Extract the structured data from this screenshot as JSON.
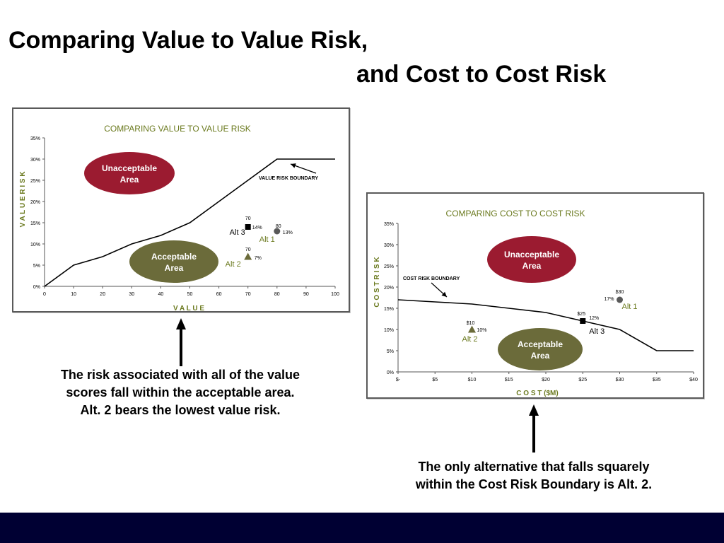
{
  "slide": {
    "title_line1": "Comparing Value to Value Risk,",
    "title_line2": "and Cost to Cost Risk",
    "caption_value": [
      "The risk associated with all of the value",
      "scores fall within the acceptable area.",
      "Alt. 2 bears the lowest value risk."
    ],
    "caption_cost": [
      "The only alternative that falls squarely",
      "within the Cost Risk Boundary is Alt. 2."
    ],
    "colors": {
      "footer": "#000033",
      "title_green": "#6b7a1f",
      "unacceptable": "#9b1b30",
      "acceptable": "#6b6b3a"
    }
  },
  "chart_data": [
    {
      "type": "scatter",
      "title": "COMPARING VALUE TO VALUE RISK",
      "xlabel": "V A L U E",
      "ylabel": "V A L U E   R I S K",
      "xlim": [
        0,
        100
      ],
      "ylim": [
        0,
        35
      ],
      "x_ticks": [
        "0",
        "10",
        "20",
        "30",
        "40",
        "50",
        "60",
        "70",
        "80",
        "90",
        "100"
      ],
      "y_ticks": [
        "0%",
        "5%",
        "10%",
        "15%",
        "20%",
        "25%",
        "30%",
        "35%"
      ],
      "boundary": {
        "label": "VALUE RISK BOUNDARY",
        "x": [
          0,
          10,
          20,
          30,
          40,
          50,
          60,
          70,
          80,
          90,
          100
        ],
        "y": [
          0,
          5,
          7,
          10,
          12,
          15,
          20,
          25,
          30,
          30,
          30
        ]
      },
      "regions": {
        "unacceptable": "Unacceptable Area",
        "acceptable": "Acceptable Area"
      },
      "points": [
        {
          "name": "Alt 3",
          "x": 70,
          "y": 14,
          "marker": "square",
          "x_label": "70",
          "y_label": "14%",
          "color": "#000000"
        },
        {
          "name": "Alt 1",
          "x": 80,
          "y": 13,
          "marker": "circle",
          "x_label": "80",
          "y_label": "13%",
          "color": "#595959"
        },
        {
          "name": "Alt 2",
          "x": 70,
          "y": 7,
          "marker": "triangle",
          "x_label": "70",
          "y_label": "7%",
          "color": "#6b6b3a"
        }
      ]
    },
    {
      "type": "scatter",
      "title": "COMPARING COST TO COST RISK",
      "xlabel": "C O S T  ($M)",
      "ylabel": "C O S T   R I S K",
      "xlim": [
        0,
        40
      ],
      "ylim": [
        0,
        35
      ],
      "x_ticks": [
        "$-",
        "$5",
        "$10",
        "$15",
        "$20",
        "$25",
        "$30",
        "$35",
        "$40"
      ],
      "y_ticks": [
        "0%",
        "5%",
        "10%",
        "15%",
        "20%",
        "25%",
        "30%",
        "35%"
      ],
      "boundary": {
        "label": "COST RISK BOUNDARY",
        "x": [
          0,
          5,
          10,
          15,
          20,
          25,
          30,
          35,
          40
        ],
        "y": [
          17,
          16.5,
          16,
          15,
          14,
          12,
          10,
          5,
          5
        ]
      },
      "regions": {
        "unacceptable": "Unacceptable Area",
        "acceptable": "Acceptable Area"
      },
      "points": [
        {
          "name": "Alt 1",
          "x": 30,
          "y": 17,
          "marker": "circle",
          "x_label": "$30",
          "y_label": "17%",
          "color": "#595959"
        },
        {
          "name": "Alt 3",
          "x": 25,
          "y": 12,
          "marker": "square",
          "x_label": "$25",
          "y_label": "12%",
          "color": "#000000"
        },
        {
          "name": "Alt 2",
          "x": 10,
          "y": 10,
          "marker": "triangle",
          "x_label": "$10",
          "y_label": "10%",
          "color": "#6b6b3a"
        }
      ]
    }
  ]
}
